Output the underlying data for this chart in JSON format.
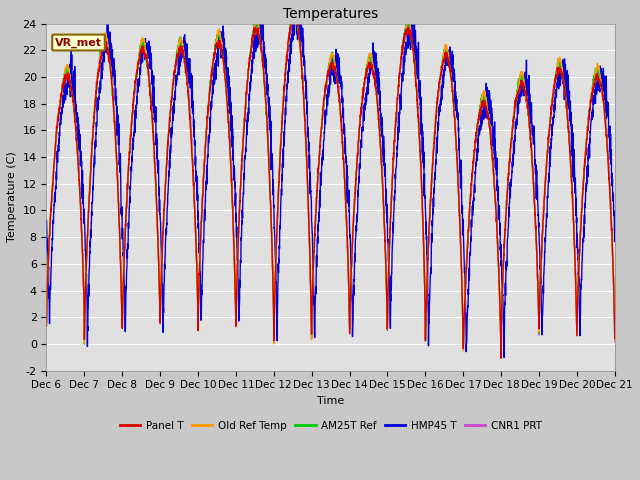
{
  "title": "Temperatures",
  "ylabel": "Temperature (C)",
  "xlabel": "Time",
  "annotation": "VR_met",
  "ylim": [
    -2,
    24
  ],
  "fig_bg": "#c8c8c8",
  "plot_bg": "#e0e0e0",
  "grid_color": "white",
  "xtick_labels": [
    "Dec 6",
    "Dec 7",
    "Dec 8",
    "Dec 9",
    "Dec 10",
    "Dec 11",
    "Dec 12",
    "Dec 13",
    "Dec 14",
    "Dec 15",
    "Dec 16",
    "Dec 17",
    "Dec 18",
    "Dec 19",
    "Dec 20",
    "Dec 21"
  ],
  "legend_labels": [
    "Panel T",
    "Old Ref Temp",
    "AM25T Ref",
    "HMP45 T",
    "CNR1 PRT"
  ],
  "colors": [
    "#dd0000",
    "#ff9900",
    "#00cc00",
    "#0000dd",
    "#cc44cc"
  ],
  "line_width": 1.0,
  "n_points": 3000,
  "n_days": 15,
  "yticks": [
    -2,
    0,
    2,
    4,
    6,
    8,
    10,
    12,
    14,
    16,
    18,
    20,
    22,
    24
  ]
}
